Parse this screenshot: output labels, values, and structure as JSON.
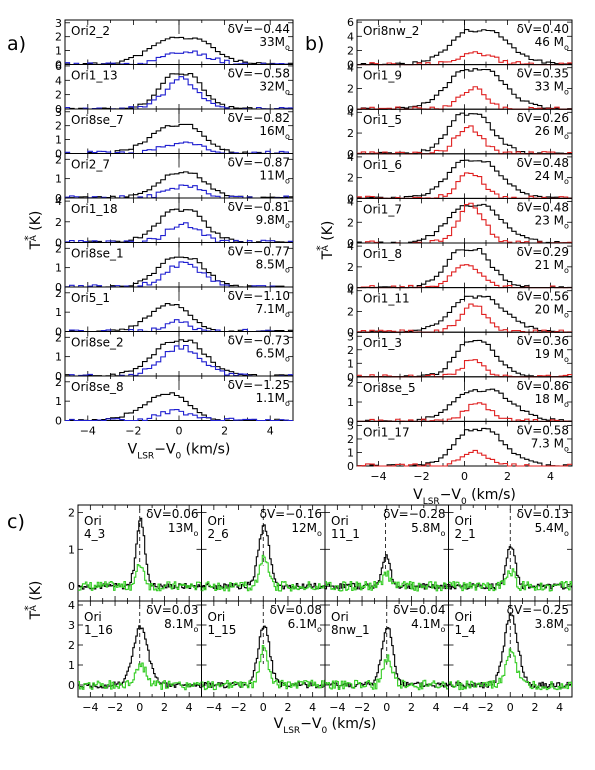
{
  "colors": {
    "base": "#000000",
    "a": "#1f1fd0",
    "b": "#e02020",
    "c": "#33cc22"
  },
  "chart_data": [
    {
      "type": "line",
      "panel_letter": "a)",
      "xlabel_main": "V",
      "xlabel_sub": "LSR",
      "xlabel_rest": "−V",
      "xlabel_sub2": "0",
      "xlabel_unit": " (km/s)",
      "ylabel_main": "T",
      "ylabel_sup": "*",
      "ylabel_sub": "A",
      "ylabel_unit": " (K)",
      "xlim": [
        -5,
        5
      ],
      "xticks": [
        "−4",
        "−2",
        "0",
        "2",
        "4"
      ],
      "panels": [
        {
          "name": "Ori2_2",
          "dv": "δV=−0.44",
          "mass_num": "33M",
          "mass_sub": "o",
          "yticks": [
            "0",
            "1",
            "2",
            "3"
          ],
          "ylim": [
            0,
            3.2
          ],
          "v0": 0.25,
          "b_amp": 1.9,
          "b_width": 1.3,
          "b_split": 0.5,
          "c_amp": 0.9,
          "c_width": 1.0
        },
        {
          "name": "Ori1_13",
          "dv": "δV=−0.58",
          "mass_num": "32M",
          "mass_sub": "o",
          "yticks": [
            "0",
            "2",
            "4",
            "6"
          ],
          "ylim": [
            0,
            6.2
          ],
          "v0": 0.0,
          "b_amp": 4.9,
          "b_width": 0.9,
          "b_split": 0.0,
          "c_amp": 4.3,
          "c_width": 0.7
        },
        {
          "name": "Ori8se_7",
          "dv": "δV=−0.82",
          "mass_num": "16M",
          "mass_sub": "o",
          "yticks": [
            "0",
            "1",
            "2",
            "3"
          ],
          "ylim": [
            0,
            3.2
          ],
          "v0": 0.0,
          "b_amp": 2.0,
          "b_width": 1.1,
          "b_split": 0.4,
          "c_amp": 0.8,
          "c_width": 0.8
        },
        {
          "name": "Ori2_7",
          "dv": "δV=−0.87",
          "mass_num": "11M",
          "mass_sub": "o",
          "yticks": [
            "0",
            "1",
            "2"
          ],
          "ylim": [
            0,
            2.3
          ],
          "v0": 0.2,
          "b_amp": 1.3,
          "b_width": 1.0,
          "b_split": 0.4,
          "c_amp": 0.6,
          "c_width": 0.8
        },
        {
          "name": "Ori1_18",
          "dv": "δV=−0.81",
          "mass_num": "9.8M",
          "mass_sub": "o",
          "yticks": [
            "0",
            "2",
            "4"
          ],
          "ylim": [
            0,
            4.3
          ],
          "v0": 0.1,
          "b_amp": 3.1,
          "b_width": 1.0,
          "b_split": 0.2,
          "c_amp": 1.8,
          "c_width": 0.7
        },
        {
          "name": "Ori8se_1",
          "dv": "δV=−0.77",
          "mass_num": "8.5M",
          "mass_sub": "o",
          "yticks": [
            "0",
            "1",
            "2"
          ],
          "ylim": [
            0,
            2.3
          ],
          "v0": 0.1,
          "b_amp": 1.5,
          "b_width": 1.0,
          "b_split": 0.2,
          "c_amp": 1.2,
          "c_width": 0.8
        },
        {
          "name": "Ori5_1",
          "dv": "δV=−1.10",
          "mass_num": "7.1M",
          "mass_sub": "o",
          "yticks": [
            "0",
            "1",
            "2"
          ],
          "ylim": [
            0,
            2.3
          ],
          "v0": -0.2,
          "b_amp": 1.4,
          "b_width": 0.8,
          "b_split": 0.7,
          "c_amp": 0.5,
          "c_width": 0.6
        },
        {
          "name": "Ori8se_2",
          "dv": "δV=−0.73",
          "mass_num": "6.5M",
          "mass_sub": "o",
          "yticks": [
            "0",
            "1",
            "2"
          ],
          "ylim": [
            0,
            2.3
          ],
          "v0": 0.0,
          "b_amp": 1.8,
          "b_width": 1.1,
          "b_split": 0.2,
          "c_amp": 1.5,
          "c_width": 0.9
        },
        {
          "name": "Ori8se_8",
          "dv": "δV=−1.25",
          "mass_num": "1.1M",
          "mass_sub": "o",
          "yticks": [
            "0",
            "1",
            "2"
          ],
          "ylim": [
            0,
            2.3
          ],
          "v0": -0.3,
          "b_amp": 1.4,
          "b_width": 0.9,
          "b_split": 0.8,
          "c_amp": 0.5,
          "c_width": 0.7
        }
      ]
    },
    {
      "type": "line",
      "panel_letter": "b)",
      "xlabel_main": "V",
      "xlabel_sub": "LSR",
      "xlabel_rest": "−V",
      "xlabel_sub2": "0",
      "xlabel_unit": " (km/s)",
      "ylabel_main": "T",
      "ylabel_sup": "*",
      "ylabel_sub": "A",
      "ylabel_unit": " (K)",
      "xlim": [
        -5,
        5
      ],
      "xticks": [
        "−4",
        "−2",
        "0",
        "2",
        "4"
      ],
      "panels": [
        {
          "name": "Ori8nw_2",
          "dv": "δV=0.40",
          "mass_num": "46 M",
          "mass_sub": "o",
          "yticks": [
            "0",
            "2",
            "4",
            "6"
          ],
          "ylim": [
            0,
            6.3
          ],
          "v0": 0.5,
          "b_amp": 4.8,
          "b_width": 1.3,
          "b_split": -0.3,
          "c_amp": 1.6,
          "c_width": 0.8
        },
        {
          "name": "Ori1_9",
          "dv": "δV=0.35",
          "mass_num": "33 M",
          "mass_sub": "o",
          "yticks": [
            "0",
            "2",
            "4"
          ],
          "ylim": [
            0,
            4.3
          ],
          "v0": 0.3,
          "b_amp": 3.8,
          "b_width": 1.3,
          "b_split": -0.3,
          "c_amp": 2.0,
          "c_width": 0.6
        },
        {
          "name": "Ori1_5",
          "dv": "δV=0.26",
          "mass_num": "26 M",
          "mass_sub": "o",
          "yticks": [
            "0",
            "2",
            "4"
          ],
          "ylim": [
            0,
            4.3
          ],
          "v0": 0.1,
          "b_amp": 3.8,
          "b_width": 1.0,
          "b_split": -0.2,
          "c_amp": 2.6,
          "c_width": 0.6
        },
        {
          "name": "Ori1_6",
          "dv": "δV=0.48",
          "mass_num": "24 M",
          "mass_sub": "o",
          "yticks": [
            "0",
            "2",
            "4"
          ],
          "ylim": [
            0,
            4.3
          ],
          "v0": 0.2,
          "b_amp": 3.6,
          "b_width": 1.2,
          "b_split": -0.4,
          "c_amp": 2.5,
          "c_width": 0.6
        },
        {
          "name": "Ori1_7",
          "dv": "δV=0.48",
          "mass_num": "23 M",
          "mass_sub": "o",
          "yticks": [
            "0",
            "2",
            "4"
          ],
          "ylim": [
            0,
            4.3
          ],
          "v0": 0.2,
          "b_amp": 3.6,
          "b_width": 1.2,
          "b_split": -0.4,
          "c_amp": 3.7,
          "c_width": 0.6
        },
        {
          "name": "Ori1_8",
          "dv": "δV=0.29",
          "mass_num": "21 M",
          "mass_sub": "o",
          "yticks": [
            "0",
            "2",
            "4"
          ],
          "ylim": [
            0,
            4.3
          ],
          "v0": 0.0,
          "b_amp": 3.7,
          "b_width": 1.0,
          "b_split": -0.2,
          "c_amp": 2.3,
          "c_width": 0.6
        },
        {
          "name": "Ori1_11",
          "dv": "δV=0.56",
          "mass_num": "20 M",
          "mass_sub": "o",
          "yticks": [
            "0",
            "2",
            "4"
          ],
          "ylim": [
            0,
            4.3
          ],
          "v0": 0.3,
          "b_amp": 3.4,
          "b_width": 1.2,
          "b_split": -0.5,
          "c_amp": 2.6,
          "c_width": 0.6
        },
        {
          "name": "Ori1_3",
          "dv": "δV=0.36",
          "mass_num": "19 M",
          "mass_sub": "o",
          "yticks": [
            "0",
            "1",
            "2",
            "3"
          ],
          "ylim": [
            0,
            3.3
          ],
          "v0": 0.3,
          "b_amp": 2.6,
          "b_width": 0.9,
          "b_split": -0.3,
          "c_amp": 1.3,
          "c_width": 0.5
        },
        {
          "name": "Ori8se_5",
          "dv": "δV=0.86",
          "mass_num": "18 M",
          "mass_sub": "o",
          "yticks": [
            "0",
            "1",
            "2"
          ],
          "ylim": [
            0,
            2.3
          ],
          "v0": 0.5,
          "b_amp": 1.6,
          "b_width": 1.3,
          "b_split": -0.6,
          "c_amp": 0.9,
          "c_width": 0.6
        },
        {
          "name": "Ori1_17",
          "dv": "δV=0.58",
          "mass_num": "7.3 M",
          "mass_sub": "o",
          "yticks": [
            "0",
            "1",
            "2",
            "3"
          ],
          "ylim": [
            0,
            3.3
          ],
          "v0": 0.4,
          "b_amp": 2.7,
          "b_width": 1.1,
          "b_split": -0.5,
          "c_amp": 1.1,
          "c_width": 0.6
        }
      ]
    },
    {
      "type": "line",
      "panel_letter": "c)",
      "xlabel_main": "V",
      "xlabel_sub": "LSR",
      "xlabel_rest": "−V",
      "xlabel_sub2": "0",
      "xlabel_unit": " (km/s)",
      "ylabel_main": "T",
      "ylabel_sup": "*",
      "ylabel_sub": "A",
      "ylabel_unit": " (K)",
      "xlim": [
        -5,
        5
      ],
      "xticks": [
        "−4",
        "−2",
        "0",
        "2",
        "4"
      ],
      "panels": [
        {
          "name1": "Ori",
          "name2": "4_3",
          "dv": "δV=0.06",
          "mass_num": "13M",
          "mass_sub": "o",
          "yticks": [
            "0",
            "1",
            "2"
          ],
          "ylim": [
            -0.4,
            2.2
          ],
          "v0": 0.0,
          "b_amp": 1.8,
          "b_width": 0.35,
          "c_amp": 0.6,
          "c_width": 0.3
        },
        {
          "name1": "Ori",
          "name2": "2_6",
          "dv": "δV=−0.16",
          "mass_num": "12M",
          "mass_sub": "o",
          "yticks": [
            "0",
            "1",
            "2"
          ],
          "ylim": [
            -0.4,
            2.2
          ],
          "v0": 0.0,
          "b_amp": 1.6,
          "b_width": 0.45,
          "c_amp": 0.8,
          "c_width": 0.35
        },
        {
          "name1": "Ori",
          "name2": "11_1",
          "dv": "δV=−0.28",
          "mass_num": "5.8M",
          "mass_sub": "o",
          "yticks": [
            "0",
            "1",
            "2"
          ],
          "ylim": [
            -0.4,
            2.2
          ],
          "v0": -0.1,
          "b_amp": 0.9,
          "b_width": 0.3,
          "c_amp": 0.4,
          "c_width": 0.25
        },
        {
          "name1": "Ori",
          "name2": "2_1",
          "dv": "δV=0.13",
          "mass_num": "5.4M",
          "mass_sub": "o",
          "yticks": [
            "0",
            "1",
            "2"
          ],
          "ylim": [
            -0.4,
            2.2
          ],
          "v0": 0.0,
          "b_amp": 1.1,
          "b_width": 0.35,
          "c_amp": 0.4,
          "c_width": 0.3
        },
        {
          "name1": "Ori",
          "name2": "1_16",
          "dv": "δV=0.03",
          "mass_num": "8.1M",
          "mass_sub": "o",
          "yticks": [
            "0",
            "1",
            "2",
            "3",
            "4"
          ],
          "ylim": [
            -0.6,
            4.2
          ],
          "v0": 0.0,
          "b_amp": 2.9,
          "b_width": 0.6,
          "c_amp": 1.0,
          "c_width": 0.45
        },
        {
          "name1": "Ori",
          "name2": "1_15",
          "dv": "δV=0.08",
          "mass_num": "6.1M",
          "mass_sub": "o",
          "yticks": [
            "0",
            "1",
            "2",
            "3",
            "4"
          ],
          "ylim": [
            -0.6,
            4.2
          ],
          "v0": 0.0,
          "b_amp": 3.0,
          "b_width": 0.45,
          "c_amp": 1.8,
          "c_width": 0.35
        },
        {
          "name1": "Ori",
          "name2": "8nw_1",
          "dv": "δV=0.04",
          "mass_num": "4.1M",
          "mass_sub": "o",
          "yticks": [
            "0",
            "1",
            "2",
            "3",
            "4"
          ],
          "ylim": [
            -0.6,
            4.2
          ],
          "v0": 0.0,
          "b_amp": 2.9,
          "b_width": 0.45,
          "c_amp": 1.3,
          "c_width": 0.35
        },
        {
          "name1": "Ori",
          "name2": "1_4",
          "dv": "δV=−0.25",
          "mass_num": "3.8M",
          "mass_sub": "o",
          "yticks": [
            "0",
            "1",
            "2",
            "3",
            "4"
          ],
          "ylim": [
            -0.6,
            4.2
          ],
          "v0": 0.0,
          "b_amp": 3.5,
          "b_width": 0.55,
          "c_amp": 1.8,
          "c_width": 0.4
        }
      ]
    }
  ]
}
